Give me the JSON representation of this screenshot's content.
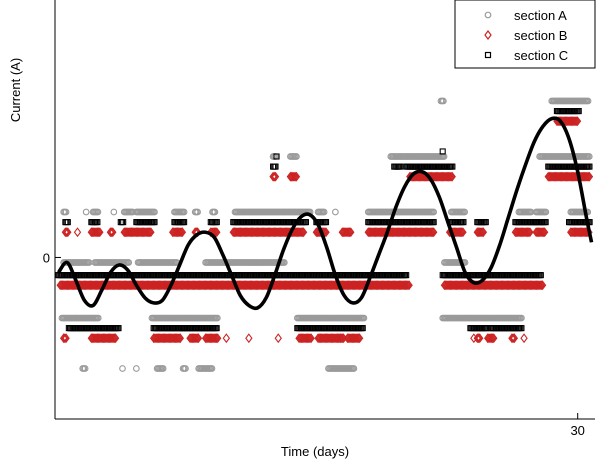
{
  "chart_data": {
    "type": "scatter",
    "title": "",
    "xlabel": "Time (days)",
    "ylabel": "Current (A)",
    "xlim": [
      -0.2,
      31
    ],
    "ylim": [
      -3.2,
      5.1
    ],
    "x_ticks": [
      30
    ],
    "y_ticks": [
      0
    ],
    "grid": false,
    "legend_position": "top-right",
    "series": [
      {
        "name": "section A",
        "marker": "circle",
        "color": "#9a9a9a",
        "segments": [
          {
            "x0": 0.3,
            "x1": 0.5,
            "y": 0.9
          },
          {
            "x0": 2.0,
            "x1": 2.3,
            "y": 0.9
          },
          {
            "x0": 3.8,
            "x1": 4.3,
            "y": 0.9
          },
          {
            "x0": 4.5,
            "x1": 5.6,
            "y": 0.9
          },
          {
            "x0": 6.7,
            "x1": 7.3,
            "y": 0.9
          },
          {
            "x0": 7.9,
            "x1": 8.1,
            "y": 0.9
          },
          {
            "x0": 8.9,
            "x1": 9.1,
            "y": 0.9
          },
          {
            "x0": 10.2,
            "x1": 14.6,
            "y": 0.9
          },
          {
            "x0": 15.0,
            "x1": 15.4,
            "y": 0.9
          },
          {
            "x0": 17.9,
            "x1": 21.7,
            "y": 0.9
          },
          {
            "x0": 22.7,
            "x1": 23.5,
            "y": 0.9
          },
          {
            "x0": 26.6,
            "x1": 27.3,
            "y": 0.9
          },
          {
            "x0": 27.6,
            "x1": 28.2,
            "y": 0.9
          },
          {
            "x0": 29.6,
            "x1": 30.6,
            "y": 0.9
          },
          {
            "x0": 0.3,
            "x1": 1.8,
            "y": -0.1
          },
          {
            "x0": 2.1,
            "x1": 4.1,
            "y": -0.1
          },
          {
            "x0": 4.6,
            "x1": 6.9,
            "y": -0.1
          },
          {
            "x0": 8.5,
            "x1": 13.1,
            "y": -0.1
          },
          {
            "x0": 22.3,
            "x1": 23.5,
            "y": -0.1
          },
          {
            "x0": 0.2,
            "x1": 2.3,
            "y": -1.2
          },
          {
            "x0": 5.4,
            "x1": 9.2,
            "y": -1.2
          },
          {
            "x0": 13.8,
            "x1": 17.7,
            "y": -1.2
          },
          {
            "x0": 22.2,
            "x1": 26.8,
            "y": -1.2
          },
          {
            "x0": 1.4,
            "x1": 1.6,
            "y": -2.2
          },
          {
            "x0": 5.7,
            "x1": 6.1,
            "y": -2.2
          },
          {
            "x0": 7.2,
            "x1": 7.4,
            "y": -2.2
          },
          {
            "x0": 8.1,
            "x1": 8.9,
            "y": -2.2
          },
          {
            "x0": 15.6,
            "x1": 17.1,
            "y": -2.2
          },
          {
            "x0": 12.4,
            "x1": 12.6,
            "y": 2.0
          },
          {
            "x0": 13.4,
            "x1": 13.8,
            "y": 2.0
          },
          {
            "x0": 19.2,
            "x1": 22.3,
            "y": 2.0
          },
          {
            "x0": 27.8,
            "x1": 30.7,
            "y": 2.0
          },
          {
            "x0": 22.1,
            "x1": 22.3,
            "y": 3.1
          },
          {
            "x0": 28.5,
            "x1": 30.6,
            "y": 3.1
          }
        ],
        "singles": [
          {
            "x": 1.6,
            "y": 0.9
          },
          {
            "x": 3.2,
            "y": 0.9
          },
          {
            "x": 16.0,
            "y": 0.9
          },
          {
            "x": 3.7,
            "y": -2.2
          },
          {
            "x": 4.5,
            "y": -2.2
          }
        ]
      },
      {
        "name": "section B",
        "marker": "diamond",
        "color": "#cc2222",
        "segments": [
          {
            "x0": 0.4,
            "x1": 0.6,
            "y": 0.5
          },
          {
            "x0": 1.9,
            "x1": 2.4,
            "y": 0.5
          },
          {
            "x0": 3.0,
            "x1": 3.2,
            "y": 0.5
          },
          {
            "x0": 3.8,
            "x1": 5.4,
            "y": 0.5
          },
          {
            "x0": 6.6,
            "x1": 7.2,
            "y": 0.5
          },
          {
            "x0": 7.9,
            "x1": 8.1,
            "y": 0.5
          },
          {
            "x0": 8.8,
            "x1": 9.2,
            "y": 0.5
          },
          {
            "x0": 10.1,
            "x1": 14.2,
            "y": 0.5
          },
          {
            "x0": 14.9,
            "x1": 15.5,
            "y": 0.5
          },
          {
            "x0": 16.4,
            "x1": 16.9,
            "y": 0.5
          },
          {
            "x0": 17.9,
            "x1": 21.7,
            "y": 0.5
          },
          {
            "x0": 22.6,
            "x1": 23.4,
            "y": 0.5
          },
          {
            "x0": 24.2,
            "x1": 24.6,
            "y": 0.5
          },
          {
            "x0": 26.4,
            "x1": 27.3,
            "y": 0.5
          },
          {
            "x0": 27.6,
            "x1": 28.1,
            "y": 0.5
          },
          {
            "x0": 29.6,
            "x1": 30.7,
            "y": 0.5
          },
          {
            "x0": 0.1,
            "x1": 20.3,
            "y": -0.55
          },
          {
            "x0": 22.3,
            "x1": 28.0,
            "y": -0.55
          },
          {
            "x0": 0.3,
            "x1": 0.5,
            "y": -1.6
          },
          {
            "x0": 1.9,
            "x1": 3.3,
            "y": -1.6
          },
          {
            "x0": 5.5,
            "x1": 7.1,
            "y": -1.6
          },
          {
            "x0": 7.6,
            "x1": 8.1,
            "y": -1.6
          },
          {
            "x0": 8.5,
            "x1": 9.2,
            "y": -1.6
          },
          {
            "x0": 13.9,
            "x1": 14.6,
            "y": -1.6
          },
          {
            "x0": 15.0,
            "x1": 16.5,
            "y": -1.6
          },
          {
            "x0": 16.7,
            "x1": 17.4,
            "y": -1.6
          },
          {
            "x0": 24.2,
            "x1": 24.4,
            "y": -1.6
          },
          {
            "x0": 24.8,
            "x1": 25.2,
            "y": -1.6
          },
          {
            "x0": 26.2,
            "x1": 26.4,
            "y": -1.6
          },
          {
            "x0": 12.4,
            "x1": 12.6,
            "y": 1.6
          },
          {
            "x0": 13.4,
            "x1": 13.8,
            "y": 1.6
          },
          {
            "x0": 20.3,
            "x1": 22.8,
            "y": 1.6
          },
          {
            "x0": 28.3,
            "x1": 30.7,
            "y": 1.6
          },
          {
            "x0": 28.8,
            "x1": 30.0,
            "y": 2.7
          }
        ],
        "singles": [
          {
            "x": 1.1,
            "y": 0.5
          },
          {
            "x": 16.3,
            "y": -1.6
          },
          {
            "x": 9.7,
            "y": -1.6
          },
          {
            "x": 11.0,
            "y": -1.6
          },
          {
            "x": 12.7,
            "y": -1.6
          },
          {
            "x": 24.0,
            "y": -1.6
          },
          {
            "x": 26.9,
            "y": -1.6
          }
        ]
      },
      {
        "name": "section C",
        "marker": "square",
        "color": "#000000",
        "segments": [
          {
            "x0": 0.4,
            "x1": 0.6,
            "y": 0.7
          },
          {
            "x0": 1.9,
            "x1": 2.3,
            "y": 0.7
          },
          {
            "x0": 3.6,
            "x1": 3.8,
            "y": 0.7
          },
          {
            "x0": 4.5,
            "x1": 5.6,
            "y": 0.7
          },
          {
            "x0": 6.7,
            "x1": 7.3,
            "y": 0.7
          },
          {
            "x0": 8.8,
            "x1": 9.2,
            "y": 0.7
          },
          {
            "x0": 10.1,
            "x1": 14.3,
            "y": 0.7
          },
          {
            "x0": 14.9,
            "x1": 15.5,
            "y": 0.7
          },
          {
            "x0": 17.9,
            "x1": 21.7,
            "y": 0.7
          },
          {
            "x0": 22.7,
            "x1": 23.4,
            "y": 0.7
          },
          {
            "x0": 24.2,
            "x1": 24.7,
            "y": 0.7
          },
          {
            "x0": 26.4,
            "x1": 28.2,
            "y": 0.7
          },
          {
            "x0": 29.5,
            "x1": 30.7,
            "y": 0.7
          },
          {
            "x0": 0.0,
            "x1": 20.1,
            "y": -0.35
          },
          {
            "x0": 22.2,
            "x1": 27.9,
            "y": -0.35
          },
          {
            "x0": 0.6,
            "x1": 3.5,
            "y": -1.4
          },
          {
            "x0": 5.5,
            "x1": 9.2,
            "y": -1.4
          },
          {
            "x0": 13.8,
            "x1": 17.6,
            "y": -1.4
          },
          {
            "x0": 23.8,
            "x1": 24.8,
            "y": -1.4
          },
          {
            "x0": 25.0,
            "x1": 26.8,
            "y": -1.4
          },
          {
            "x0": 12.4,
            "x1": 12.6,
            "y": 1.8
          },
          {
            "x0": 19.4,
            "x1": 19.8,
            "y": 1.8
          },
          {
            "x0": 20.1,
            "x1": 22.8,
            "y": 1.8
          },
          {
            "x0": 28.3,
            "x1": 30.7,
            "y": 1.8
          },
          {
            "x0": 28.8,
            "x1": 30.1,
            "y": 2.9
          }
        ],
        "singles": [
          {
            "x": 12.6,
            "y": 2.0
          },
          {
            "x": 20.6,
            "y": 1.8
          },
          {
            "x": 22.2,
            "y": 2.1
          }
        ]
      }
    ],
    "fit_curve": {
      "color": "#000000",
      "x": [
        0.0,
        0.5,
        1.0,
        1.5,
        2.0,
        2.5,
        3.0,
        3.5,
        4.0,
        4.5,
        5.0,
        5.5,
        6.0,
        6.5,
        7.0,
        7.5,
        8.0,
        8.5,
        9.0,
        9.5,
        10.0,
        10.5,
        11.0,
        11.5,
        12.0,
        12.5,
        13.0,
        13.5,
        14.0,
        14.5,
        15.0,
        15.5,
        16.0,
        16.5,
        17.0,
        17.5,
        18.0,
        18.5,
        19.0,
        19.5,
        20.0,
        20.5,
        21.0,
        21.5,
        22.0,
        22.5,
        23.0,
        23.5,
        24.0,
        24.5,
        25.0,
        25.5,
        26.0,
        26.5,
        27.0,
        27.5,
        28.0,
        28.5,
        29.0,
        29.5,
        30.0,
        30.5,
        30.8
      ],
      "y": [
        -0.3,
        -0.1,
        -0.45,
        -0.85,
        -0.95,
        -0.65,
        -0.3,
        -0.15,
        -0.25,
        -0.55,
        -0.8,
        -0.9,
        -0.85,
        -0.55,
        -0.15,
        0.25,
        0.45,
        0.5,
        0.4,
        0.05,
        -0.35,
        -0.75,
        -0.95,
        -1.0,
        -0.8,
        -0.35,
        0.15,
        0.55,
        0.8,
        0.85,
        0.65,
        0.2,
        -0.35,
        -0.75,
        -0.9,
        -0.8,
        -0.4,
        0.05,
        0.5,
        1.0,
        1.4,
        1.65,
        1.7,
        1.55,
        1.2,
        0.7,
        0.2,
        -0.3,
        -0.5,
        -0.45,
        -0.2,
        0.25,
        0.8,
        1.35,
        1.85,
        2.3,
        2.6,
        2.75,
        2.7,
        2.35,
        1.7,
        0.8,
        0.3
      ]
    },
    "axis_labels": {
      "x_tick_label": "30",
      "y_tick_label": "0"
    }
  }
}
